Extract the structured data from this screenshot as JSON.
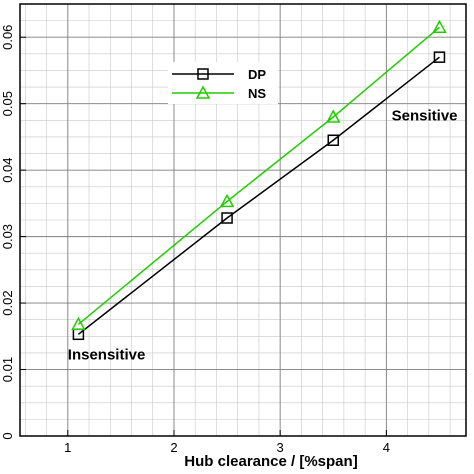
{
  "chart_data": {
    "type": "line",
    "xlabel": "Hub clearance / [%span]",
    "ylabel": "",
    "xlim": [
      0.55,
      4.75
    ],
    "ylim": [
      0,
      0.065
    ],
    "xticks": [
      1,
      2,
      3,
      4
    ],
    "yticks": [
      0,
      0.01,
      0.02,
      0.03,
      0.04,
      0.05,
      0.06
    ],
    "xtick_labels": [
      "1",
      "2",
      "3",
      "4"
    ],
    "ytick_labels": [
      "0",
      "0.01",
      "0.02",
      "0.03",
      "0.04",
      "0.05",
      "0.06"
    ],
    "grid": true,
    "legend_position": "top-center",
    "series": [
      {
        "name": "DP",
        "color": "#000000",
        "marker": "square",
        "x": [
          1.1,
          2.5,
          3.5,
          4.5
        ],
        "y": [
          0.0153,
          0.0328,
          0.0445,
          0.057
        ]
      },
      {
        "name": "NS",
        "color": "#22cc00",
        "marker": "triangle",
        "x": [
          1.1,
          2.5,
          3.5,
          4.5
        ],
        "y": [
          0.0168,
          0.0353,
          0.048,
          0.0615
        ]
      }
    ],
    "annotations": [
      {
        "text": "Insensitive",
        "x": 1.0,
        "y": 0.0115
      },
      {
        "text": "Sensitive",
        "x": 4.05,
        "y": 0.0475
      }
    ]
  }
}
